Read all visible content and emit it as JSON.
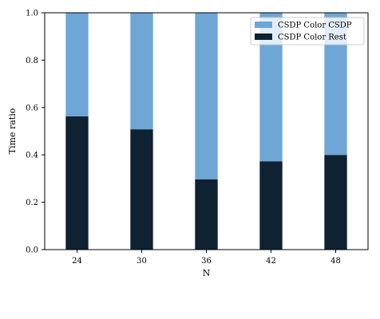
{
  "chart_data": {
    "type": "bar",
    "stacked": true,
    "categories": [
      "24",
      "30",
      "36",
      "42",
      "48"
    ],
    "series": [
      {
        "name": "CSDP Color Rest",
        "color": "#0f2231",
        "values": [
          0.563,
          0.508,
          0.297,
          0.373,
          0.4
        ]
      },
      {
        "name": "CSDP Color CSDP",
        "color": "#6ea6d6",
        "values": [
          0.437,
          0.492,
          0.703,
          0.627,
          0.6
        ]
      }
    ],
    "legend_order": [
      "CSDP Color CSDP",
      "CSDP Color Rest"
    ],
    "xlabel": "N",
    "ylabel": "Time ratio",
    "ylim": [
      0,
      1
    ],
    "yticks": [
      "0.0",
      "0.2",
      "0.4",
      "0.6",
      "0.8",
      "1.0"
    ],
    "legend_position": "top-right",
    "grid": false
  }
}
